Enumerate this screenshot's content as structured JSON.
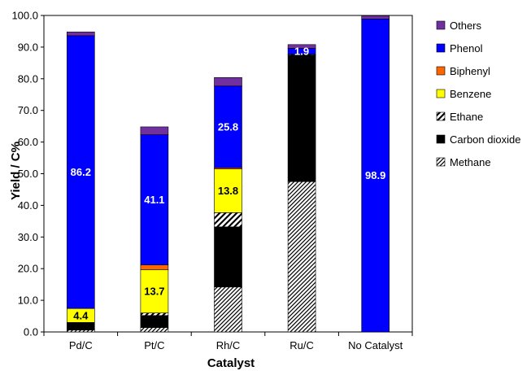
{
  "chart_data": {
    "type": "bar",
    "stacked": true,
    "xlabel": "Catalyst",
    "ylabel": "Yield / C%",
    "ylim": [
      0,
      100
    ],
    "yticks": [
      "0.0",
      "10.0",
      "20.0",
      "30.0",
      "40.0",
      "50.0",
      "60.0",
      "70.0",
      "80.0",
      "90.0",
      "100.0"
    ],
    "categories": [
      "Pd/C",
      "Pt/C",
      "Rh/C",
      "Ru/C",
      "No Catalyst"
    ],
    "legend_position": "right",
    "series": [
      {
        "name": "Methane",
        "color": "#ffffff",
        "pattern": "dense-diagonal",
        "values": [
          0.6,
          1.4,
          14.2,
          47.5,
          0
        ]
      },
      {
        "name": "Carbon dioxide",
        "color": "#000000",
        "pattern": "solid",
        "values": [
          2.4,
          3.8,
          19.0,
          40.0,
          0
        ]
      },
      {
        "name": "Ethane",
        "color": "#ffffff",
        "pattern": "wide-diagonal",
        "values": [
          0,
          0.8,
          4.5,
          0.2,
          0
        ]
      },
      {
        "name": "Benzene",
        "color": "#ffff00",
        "pattern": "solid",
        "values": [
          4.4,
          13.7,
          13.8,
          0,
          0
        ]
      },
      {
        "name": "Biphenyl",
        "color": "#ff6600",
        "pattern": "solid",
        "values": [
          0,
          1.5,
          0.4,
          0,
          0
        ]
      },
      {
        "name": "Phenol",
        "color": "#0000ff",
        "pattern": "solid",
        "values": [
          86.2,
          41.1,
          25.8,
          1.9,
          98.9
        ]
      },
      {
        "name": "Others",
        "color": "#7030a0",
        "pattern": "solid",
        "values": [
          1.2,
          2.5,
          2.7,
          1.2,
          1.0
        ]
      }
    ],
    "data_labels": [
      {
        "category": "Pd/C",
        "series": "Benzene",
        "text": "4.4"
      },
      {
        "category": "Pd/C",
        "series": "Phenol",
        "text": "86.2"
      },
      {
        "category": "Pt/C",
        "series": "Benzene",
        "text": "13.7"
      },
      {
        "category": "Pt/C",
        "series": "Phenol",
        "text": "41.1"
      },
      {
        "category": "Rh/C",
        "series": "Benzene",
        "text": "13.8"
      },
      {
        "category": "Rh/C",
        "series": "Phenol",
        "text": "25.8"
      },
      {
        "category": "Ru/C",
        "series": "Phenol",
        "text": "1.9"
      },
      {
        "category": "No Catalyst",
        "series": "Phenol",
        "text": "98.9"
      }
    ],
    "legend_order": [
      "Others",
      "Phenol",
      "Biphenyl",
      "Benzene",
      "Ethane",
      "Carbon dioxide",
      "Methane"
    ]
  }
}
